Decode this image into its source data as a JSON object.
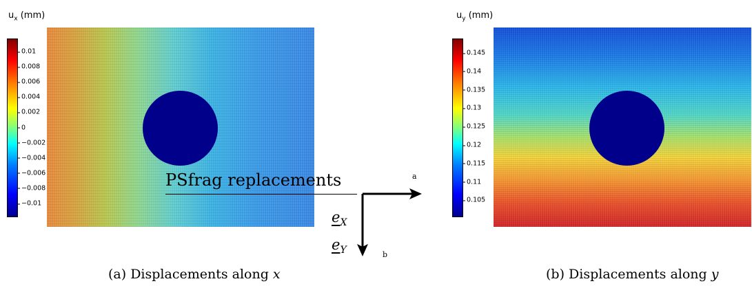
{
  "figure_a": {
    "unit_symbol": "u",
    "unit_sub": "x",
    "unit_suffix": " (mm)",
    "colorbar_ticks": [
      "0.01",
      "0.008",
      "0.006",
      "0.004",
      "0.002",
      "0",
      "−0.002",
      "−0.004",
      "−0.006",
      "−0.008",
      "−0.01"
    ],
    "caption_prefix": "(a) Displacements along ",
    "caption_var": "x"
  },
  "figure_b": {
    "unit_symbol": "u",
    "unit_sub": "y",
    "unit_suffix": " (mm)",
    "colorbar_ticks": [
      "0.145",
      "0.14",
      "0.135",
      "0.13",
      "0.125",
      "0.12",
      "0.115",
      "0.11",
      "0.105"
    ],
    "caption_prefix": "(b) Displacements along ",
    "caption_var": "y"
  },
  "overlay": {
    "psfrag_text": "PSfrag replacements",
    "label_a": "a",
    "label_b": "b",
    "ex_base": "e",
    "ex_sub": "X",
    "ey_base": "e",
    "ey_sub": "Y"
  },
  "colors": {
    "hole": "#01008a",
    "colormap": "jet"
  }
}
